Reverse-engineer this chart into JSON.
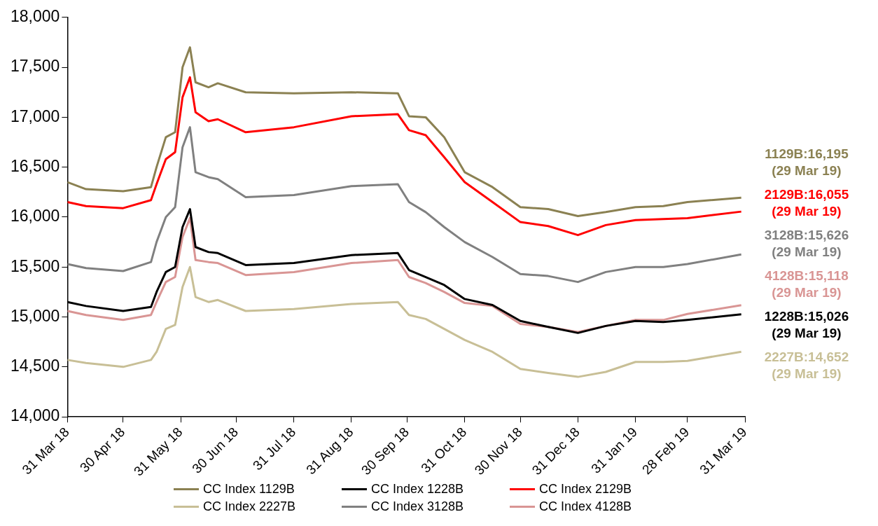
{
  "chart_data": {
    "type": "line",
    "legend": "bottom",
    "grid": false,
    "marker": "none",
    "line_style": "solid",
    "x": [
      "2018-03-31",
      "2018-04-10",
      "2018-04-30",
      "2018-05-15",
      "2018-05-18",
      "2018-05-23",
      "2018-05-28",
      "2018-06-01",
      "2018-06-05",
      "2018-06-08",
      "2018-06-15",
      "2018-06-20",
      "2018-07-05",
      "2018-07-31",
      "2018-08-31",
      "2018-09-25",
      "2018-10-01",
      "2018-10-10",
      "2018-10-20",
      "2018-10-31",
      "2018-11-15",
      "2018-11-30",
      "2018-12-15",
      "2018-12-31",
      "2019-01-15",
      "2019-01-31",
      "2019-02-15",
      "2019-02-28",
      "2019-03-29"
    ],
    "xlim": [
      "2018-03-31",
      "2019-03-31"
    ],
    "xticks": [
      {
        "value": "2018-03-31",
        "label": "31 Mar 18"
      },
      {
        "value": "2018-04-30",
        "label": "30 Apr 18"
      },
      {
        "value": "2018-05-31",
        "label": "31 May 18"
      },
      {
        "value": "2018-06-30",
        "label": "30 Jun 18"
      },
      {
        "value": "2018-07-31",
        "label": "31 Jul 18"
      },
      {
        "value": "2018-08-31",
        "label": "31 Aug 18"
      },
      {
        "value": "2018-09-30",
        "label": "30 Sep 18"
      },
      {
        "value": "2018-10-31",
        "label": "31 Oct 18"
      },
      {
        "value": "2018-11-30",
        "label": "30 Nov 18"
      },
      {
        "value": "2018-12-31",
        "label": "31 Dec 18"
      },
      {
        "value": "2019-01-31",
        "label": "31 Jan 19"
      },
      {
        "value": "2019-02-28",
        "label": "28 Feb 19"
      },
      {
        "value": "2019-03-31",
        "label": "31 Mar 19"
      }
    ],
    "ylim": [
      14000,
      18000
    ],
    "yticks": [
      {
        "value": 14000,
        "label": "14,000"
      },
      {
        "value": 14500,
        "label": "14,500"
      },
      {
        "value": 15000,
        "label": "15,000"
      },
      {
        "value": 15500,
        "label": "15,500"
      },
      {
        "value": 16000,
        "label": "16,000"
      },
      {
        "value": 16500,
        "label": "16,500"
      },
      {
        "value": 17000,
        "label": "17,000"
      },
      {
        "value": 17500,
        "label": "17,500"
      },
      {
        "value": 18000,
        "label": "18,000"
      }
    ],
    "series": [
      {
        "name": "CC Index 1129B",
        "color": "#8b8152",
        "values": [
          16350,
          16280,
          16260,
          16300,
          16500,
          16800,
          16850,
          17500,
          17700,
          17350,
          17300,
          17340,
          17250,
          17240,
          17250,
          17240,
          17010,
          17000,
          16800,
          16450,
          16300,
          16100,
          16080,
          16010,
          16050,
          16100,
          16110,
          16150,
          16195
        ]
      },
      {
        "name": "CC Index 1228B",
        "color": "#000000",
        "values": [
          15150,
          15110,
          15060,
          15100,
          15250,
          15450,
          15500,
          15900,
          16080,
          15700,
          15650,
          15640,
          15520,
          15540,
          15620,
          15640,
          15470,
          15400,
          15320,
          15180,
          15120,
          14960,
          14900,
          14840,
          14910,
          14960,
          14950,
          14970,
          15026
        ]
      },
      {
        "name": "CC Index 2129B",
        "color": "#ff0000",
        "values": [
          16150,
          16110,
          16090,
          16170,
          16330,
          16580,
          16650,
          17200,
          17400,
          17050,
          16960,
          16980,
          16850,
          16900,
          17010,
          17030,
          16870,
          16820,
          16600,
          16350,
          16150,
          15950,
          15910,
          15820,
          15920,
          15970,
          15980,
          15990,
          16055
        ]
      },
      {
        "name": "CC Index 2227B",
        "color": "#c8bf96",
        "values": [
          14570,
          14540,
          14500,
          14570,
          14650,
          14880,
          14920,
          15300,
          15500,
          15200,
          15150,
          15170,
          15060,
          15080,
          15130,
          15150,
          15020,
          14980,
          14880,
          14770,
          14650,
          14480,
          14440,
          14400,
          14450,
          14550,
          14550,
          14560,
          14652
        ]
      },
      {
        "name": "CC Index 3128B",
        "color": "#808080",
        "values": [
          15530,
          15490,
          15460,
          15550,
          15750,
          16000,
          16100,
          16700,
          16900,
          16450,
          16400,
          16380,
          16200,
          16220,
          16310,
          16330,
          16150,
          16050,
          15900,
          15750,
          15600,
          15430,
          15410,
          15350,
          15450,
          15500,
          15500,
          15530,
          15626
        ]
      },
      {
        "name": "CC Index 4128B",
        "color": "#d99594",
        "values": [
          15060,
          15020,
          14970,
          15020,
          15150,
          15350,
          15400,
          15800,
          15990,
          15570,
          15550,
          15540,
          15420,
          15450,
          15540,
          15570,
          15400,
          15340,
          15250,
          15140,
          15110,
          14930,
          14900,
          14850,
          14910,
          14970,
          14970,
          15030,
          15118
        ]
      }
    ],
    "annotations": [
      "1129B:16,195 (29 Mar 19)",
      "2129B:16,055 (29 Mar 19)",
      "3128B:15,626 (29 Mar 19)",
      "4128B:15,118 (29 Mar 19)",
      "1228B:15,026 (29 Mar 19)",
      "2227B:14,652 (29 Mar 19)"
    ]
  }
}
